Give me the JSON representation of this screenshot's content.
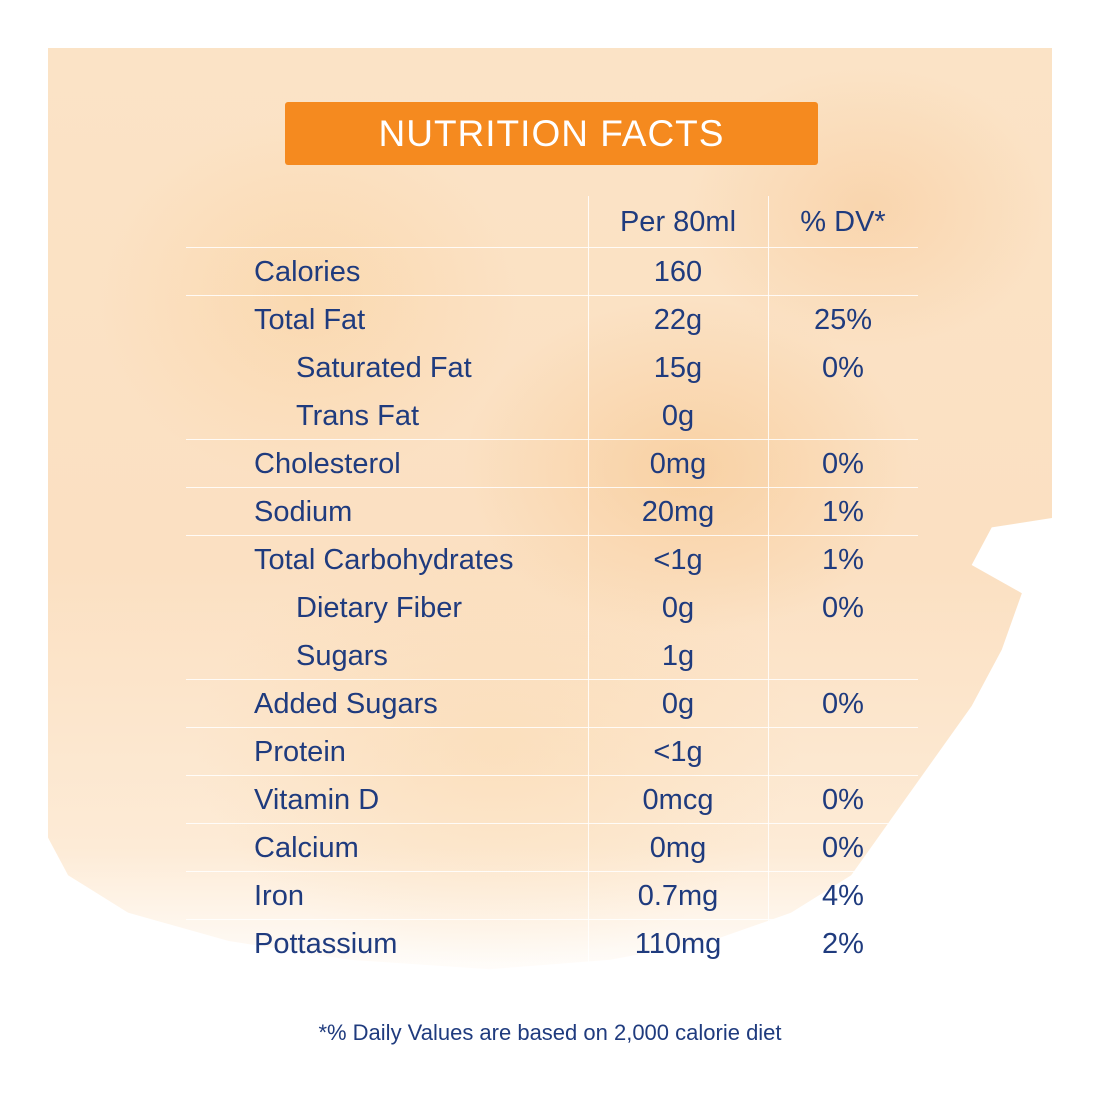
{
  "title": "NUTRITION FACTS",
  "columns": {
    "nutrient": "",
    "amount": "Per 80ml",
    "dv": "% DV*"
  },
  "rows": [
    {
      "name": "Calories",
      "amount": "160",
      "dv": ""
    },
    {
      "name": "Total Fat",
      "amount": "22g",
      "dv": "25%"
    },
    {
      "name": "Saturated Fat",
      "amount": "15g",
      "dv": "0%"
    },
    {
      "name": "Trans Fat",
      "amount": "0g",
      "dv": ""
    },
    {
      "name": "Cholesterol",
      "amount": "0mg",
      "dv": "0%"
    },
    {
      "name": "Sodium",
      "amount": "20mg",
      "dv": "1%"
    },
    {
      "name": "Total Carbohydrates",
      "amount": "<1g",
      "dv": "1%"
    },
    {
      "name": "Dietary Fiber",
      "amount": "0g",
      "dv": "0%"
    },
    {
      "name": "Sugars",
      "amount": "1g",
      "dv": ""
    },
    {
      "name": "Added Sugars",
      "amount": "0g",
      "dv": "0%"
    },
    {
      "name": "Protein",
      "amount": "<1g",
      "dv": ""
    },
    {
      "name": "Vitamin D",
      "amount": "0mcg",
      "dv": "0%"
    },
    {
      "name": "Calcium",
      "amount": "0mg",
      "dv": "0%"
    },
    {
      "name": "Iron",
      "amount": "0.7mg",
      "dv": "4%"
    },
    {
      "name": "Pottassium",
      "amount": "110mg",
      "dv": "2%"
    }
  ],
  "footnote": "*% Daily Values are based on 2,000 calorie diet",
  "colors": {
    "banner": "#f58a1f",
    "text": "#1f3b7e",
    "background_wash": "#fbe0c2"
  }
}
